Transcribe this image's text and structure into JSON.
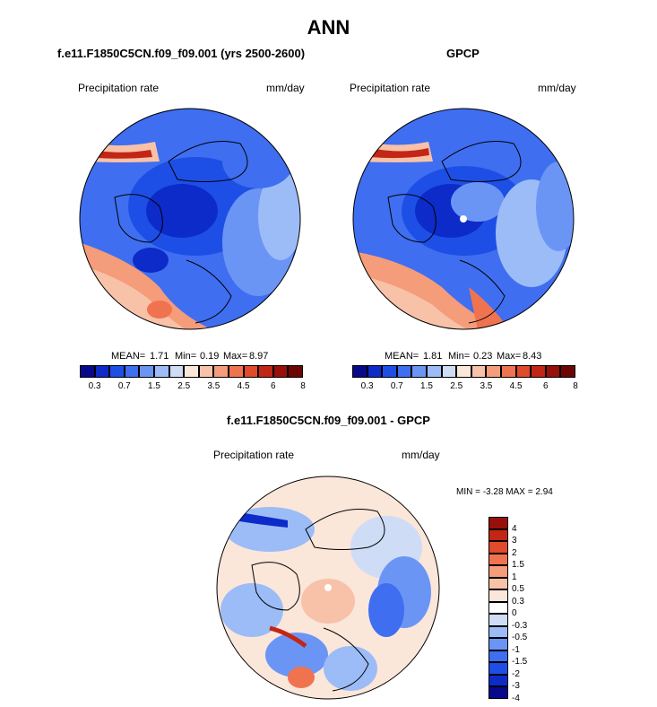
{
  "title": "ANN",
  "panels": [
    {
      "subtitle": "f.e11.F1850C5CN.f09_f09.001 (yrs 2500-2600)",
      "left_label": "Precipitation rate",
      "right_label": "mm/day",
      "stats": {
        "mean_label": "MEAN=",
        "mean": "1.71",
        "min_label": "Min=",
        "min": "0.19",
        "max_label": "Max=",
        "max": "8.97"
      }
    },
    {
      "subtitle": "GPCP",
      "left_label": "Precipitation rate",
      "right_label": "mm/day",
      "stats": {
        "mean_label": "MEAN=",
        "mean": "1.81",
        "min_label": "Min=",
        "min": "0.23",
        "max_label": "Max=",
        "max": "8.43"
      }
    }
  ],
  "diff_panel": {
    "subtitle": "f.e11.F1850C5CN.f09_f09.001 - GPCP",
    "left_label": "Precipitation rate",
    "right_label": "mm/day",
    "minmax": "MIN = -3.28 MAX = 2.94"
  },
  "colorbar_abs": {
    "colors": [
      "#08088c",
      "#0d2bc8",
      "#1d4fe6",
      "#3f6ef0",
      "#6b95f5",
      "#9cbcf7",
      "#cfdcf5",
      "#fbe6da",
      "#f8c2a8",
      "#f59c7a",
      "#f07350",
      "#e24a2c",
      "#c32616",
      "#98100a",
      "#6e0505"
    ],
    "ticks": [
      "0.3",
      "0.7",
      "1.5",
      "2.5",
      "3.5",
      "4.5",
      "6",
      "8"
    ]
  },
  "colorbar_diff": {
    "colors": [
      "#08088c",
      "#0d2bc8",
      "#1d4fe6",
      "#3f6ef0",
      "#6b95f5",
      "#9cbcf7",
      "#cfdcf5",
      "#ffffff",
      "#fbe6da",
      "#f8c2a8",
      "#f59c7a",
      "#f07350",
      "#e24a2c",
      "#c32616",
      "#98100a"
    ],
    "ticks": [
      "4",
      "3",
      "2",
      "1.5",
      "1",
      "0.5",
      "0.3",
      "0",
      "-0.3",
      "-0.5",
      "-1",
      "-1.5",
      "-2",
      "-3",
      "-4"
    ]
  }
}
